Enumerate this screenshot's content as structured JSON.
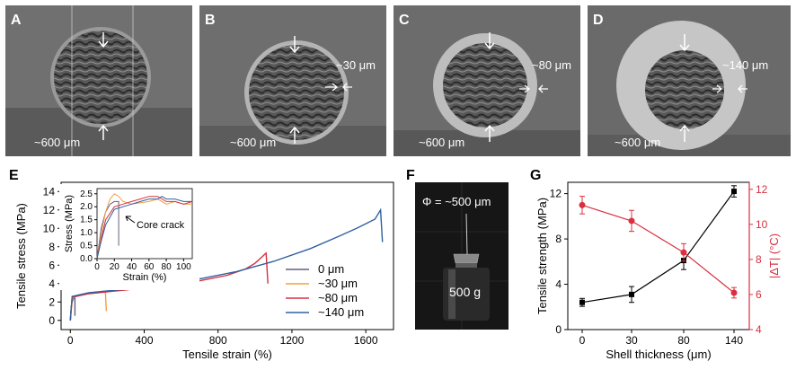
{
  "panels": {
    "A": {
      "label": "A",
      "dia": "~600 μm",
      "shell": ""
    },
    "B": {
      "label": "B",
      "dia": "~600 μm",
      "shell": "~30 μm"
    },
    "C": {
      "label": "C",
      "dia": "~600 μm",
      "shell": "~80 μm"
    },
    "D": {
      "label": "D",
      "dia": "~600 μm",
      "shell": "~140 μm"
    },
    "E": {
      "label": "E"
    },
    "F": {
      "label": "F",
      "phi": "Φ = ~500 μm",
      "weight": "500 g"
    },
    "G": {
      "label": "G"
    }
  },
  "colors": {
    "s0": "#606080",
    "s30": "#f0a040",
    "s80": "#d83040",
    "s140": "#3060a0",
    "gBlack": "#000000",
    "gRed": "#d83040"
  },
  "chart_data": [
    {
      "type": "line",
      "title": "",
      "xlabel": "Tensile strain (%)",
      "ylabel": "Tensile stress (MPa)",
      "xlim": [
        -50,
        1750
      ],
      "ylim": [
        -1,
        15
      ],
      "xticks": [
        "0",
        "400",
        "800",
        "1200",
        "1600"
      ],
      "yticks": [
        "0",
        "2",
        "4",
        "6",
        "8",
        "10",
        "12",
        "14"
      ],
      "legend": [
        "0 μm",
        "~30 μm",
        "~80 μm",
        "~140 μm"
      ],
      "series": [
        {
          "name": "0 μm",
          "x": [
            0,
            5,
            10,
            15,
            20,
            25,
            25
          ],
          "y": [
            0,
            1.5,
            2.0,
            2.3,
            2.4,
            2.4,
            0.5
          ]
        },
        {
          "name": "~30 μm",
          "x": [
            0,
            10,
            20,
            50,
            100,
            150,
            190,
            195
          ],
          "y": [
            0,
            2.2,
            2.6,
            2.7,
            2.9,
            3.0,
            3.1,
            1.0
          ]
        },
        {
          "name": "~80 μm",
          "x": [
            0,
            10,
            100,
            300,
            500,
            700,
            850,
            950,
            1000,
            1060,
            1070
          ],
          "y": [
            0,
            2.5,
            2.9,
            3.3,
            3.8,
            4.3,
            4.9,
            5.6,
            6.2,
            7.3,
            4.0
          ]
        },
        {
          "name": "~140 μm",
          "x": [
            0,
            10,
            100,
            300,
            500,
            700,
            900,
            1100,
            1300,
            1450,
            1550,
            1600,
            1650,
            1680,
            1690
          ],
          "y": [
            0,
            2.6,
            3.0,
            3.4,
            3.9,
            4.5,
            5.3,
            6.4,
            7.8,
            9.1,
            10.0,
            10.5,
            11.0,
            12.0,
            8.5
          ]
        }
      ]
    },
    {
      "type": "line",
      "title": "",
      "xlabel": "Strain (%)",
      "ylabel": "Stress (MPa)",
      "xlim": [
        0,
        110
      ],
      "ylim": [
        0,
        2.7
      ],
      "xticks": [
        "0",
        "20",
        "40",
        "60",
        "80",
        "100"
      ],
      "yticks": [
        "0.0",
        "0.5",
        "1.0",
        "1.5",
        "2.0",
        "2.5"
      ],
      "annotation": "Core crack",
      "series": [
        {
          "name": "0 μm",
          "x": [
            0,
            5,
            10,
            15,
            20,
            25,
            25
          ],
          "y": [
            0,
            1.2,
            1.8,
            2.1,
            2.2,
            2.2,
            0.5
          ]
        },
        {
          "name": "~30 μm",
          "x": [
            0,
            5,
            10,
            15,
            20,
            25,
            30,
            40,
            60,
            70,
            80,
            90,
            100,
            110
          ],
          "y": [
            0,
            1.0,
            1.8,
            2.3,
            2.5,
            2.4,
            2.2,
            2.1,
            2.2,
            2.3,
            2.1,
            2.2,
            2.1,
            2.1
          ]
        },
        {
          "name": "~80 μm",
          "x": [
            0,
            5,
            10,
            20,
            30,
            40,
            50,
            60,
            70,
            80,
            90,
            100,
            110
          ],
          "y": [
            0,
            0.8,
            1.5,
            2.0,
            2.1,
            2.2,
            2.3,
            2.4,
            2.4,
            2.2,
            2.2,
            2.1,
            2.2
          ]
        },
        {
          "name": "~140 μm",
          "x": [
            0,
            5,
            10,
            20,
            30,
            40,
            50,
            60,
            70,
            75,
            80,
            90,
            100,
            110
          ],
          "y": [
            0,
            0.7,
            1.3,
            1.9,
            2.0,
            2.1,
            2.2,
            2.3,
            2.3,
            2.4,
            2.3,
            2.3,
            2.2,
            2.2
          ]
        }
      ]
    },
    {
      "type": "line",
      "title": "",
      "xlabel": "Shell thickness (μm)",
      "ylabel": "Tensile strength (MPa)",
      "ylabel_right": "|ΔT| (°C)",
      "categories": [
        "0",
        "30",
        "80",
        "140"
      ],
      "ylim": [
        0,
        13
      ],
      "ylim_right": [
        4,
        12.4
      ],
      "yticks": [
        "0",
        "4",
        "8",
        "12"
      ],
      "yticks_right": [
        "4",
        "6",
        "8",
        "10",
        "12"
      ],
      "series": [
        {
          "name": "Tensile strength",
          "values": [
            2.4,
            3.1,
            6.1,
            12.2
          ],
          "err": [
            0.35,
            0.7,
            0.8,
            0.5
          ]
        },
        {
          "name": "|ΔT|",
          "values": [
            11.1,
            10.2,
            8.4,
            6.1
          ],
          "err": [
            0.5,
            0.6,
            0.5,
            0.3
          ]
        }
      ]
    }
  ]
}
